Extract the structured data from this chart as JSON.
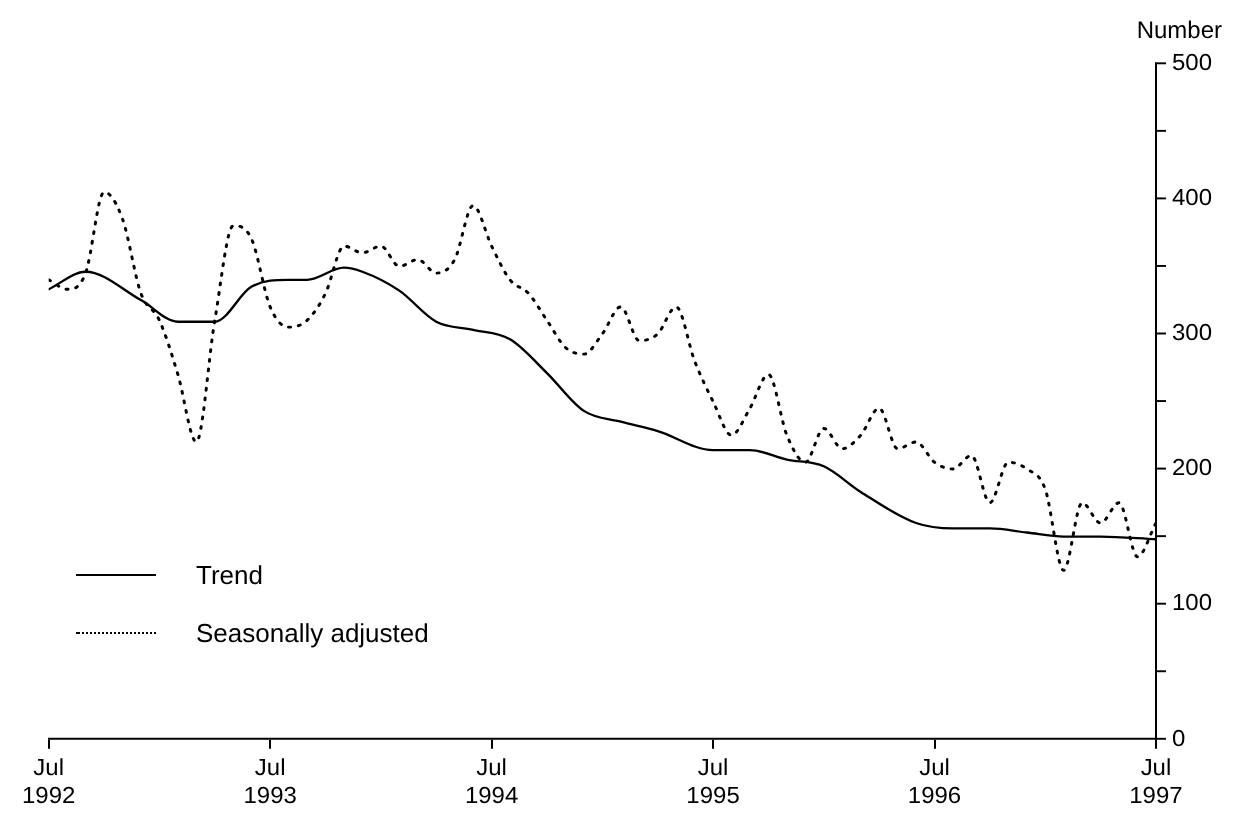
{
  "chart_data": {
    "type": "line",
    "ylabel": "Number",
    "xlim": [
      "1992-07",
      "1997-07"
    ],
    "xticks": [
      {
        "value": "1992-07",
        "label": "Jul 1992"
      },
      {
        "value": "1993-07",
        "label": "Jul 1993"
      },
      {
        "value": "1994-07",
        "label": "Jul 1994"
      },
      {
        "value": "1995-07",
        "label": "Jul 1995"
      },
      {
        "value": "1996-07",
        "label": "Jul 1996"
      },
      {
        "value": "1997-07",
        "label": "Jul 1997"
      }
    ],
    "ylim": [
      0,
      500
    ],
    "yticks": [
      0,
      {
        "value": 50,
        "label": null
      },
      100,
      {
        "value": 150,
        "label": null
      },
      200,
      {
        "value": 250,
        "label": null
      },
      300,
      {
        "value": 350,
        "label": null
      },
      400,
      {
        "value": 450,
        "label": null
      },
      500
    ],
    "grid": false,
    "legend": "bottom left",
    "marker": "none",
    "series": [
      {
        "name": "Trend",
        "color": "#000000",
        "line_style": "solid",
        "x": [
          "1992-07",
          "1992-09",
          "1992-12",
          "1993-02",
          "1993-04",
          "1993-06",
          "1993-08",
          "1993-09",
          "1993-11",
          "1993-12",
          "1994-02",
          "1994-04",
          "1994-06",
          "1994-08",
          "1994-10",
          "1994-12",
          "1995-02",
          "1995-04",
          "1995-07",
          "1995-09",
          "1995-11",
          "1996-01",
          "1996-03",
          "1996-06",
          "1996-08",
          "1996-10",
          "1996-12",
          "1997-02",
          "1997-04",
          "1997-07"
        ],
        "values": [
          333,
          346,
          325,
          309,
          309,
          335,
          340,
          340,
          349,
          346,
          332,
          309,
          303,
          296,
          271,
          243,
          235,
          228,
          214,
          214,
          207,
          202,
          183,
          160,
          156,
          156,
          153,
          150,
          150,
          148
        ]
      },
      {
        "name": "Seasonally adjusted",
        "color": "#000000",
        "line_style": "dotted",
        "x": [
          "1992-07",
          "1992-08",
          "1992-09",
          "1992-10",
          "1992-11",
          "1992-12",
          "1993-01",
          "1993-02",
          "1993-03",
          "1993-04",
          "1993-05",
          "1993-06",
          "1993-07",
          "1993-08",
          "1993-09",
          "1993-10",
          "1993-11",
          "1993-12",
          "1994-01",
          "1994-02",
          "1994-03",
          "1994-04",
          "1994-05",
          "1994-06",
          "1994-07",
          "1994-08",
          "1994-09",
          "1994-10",
          "1994-11",
          "1994-12",
          "1995-01",
          "1995-02",
          "1995-03",
          "1995-04",
          "1995-05",
          "1995-06",
          "1995-07",
          "1995-08",
          "1995-09",
          "1995-10",
          "1995-11",
          "1995-12",
          "1996-01",
          "1996-02",
          "1996-03",
          "1996-04",
          "1996-05",
          "1996-06",
          "1996-07",
          "1996-08",
          "1996-09",
          "1996-10",
          "1996-11",
          "1996-12",
          "1997-01",
          "1997-02",
          "1997-03",
          "1997-04",
          "1997-05",
          "1997-06",
          "1997-07"
        ],
        "values": [
          340,
          333,
          345,
          405,
          385,
          330,
          310,
          270,
          220,
          310,
          380,
          370,
          320,
          305,
          310,
          330,
          365,
          360,
          365,
          350,
          355,
          345,
          355,
          395,
          365,
          340,
          330,
          310,
          290,
          285,
          300,
          320,
          295,
          300,
          320,
          280,
          250,
          225,
          245,
          270,
          225,
          205,
          230,
          215,
          225,
          245,
          215,
          220,
          205,
          200,
          210,
          175,
          205,
          200,
          185,
          125,
          175,
          160,
          175,
          135,
          160
        ]
      }
    ]
  }
}
